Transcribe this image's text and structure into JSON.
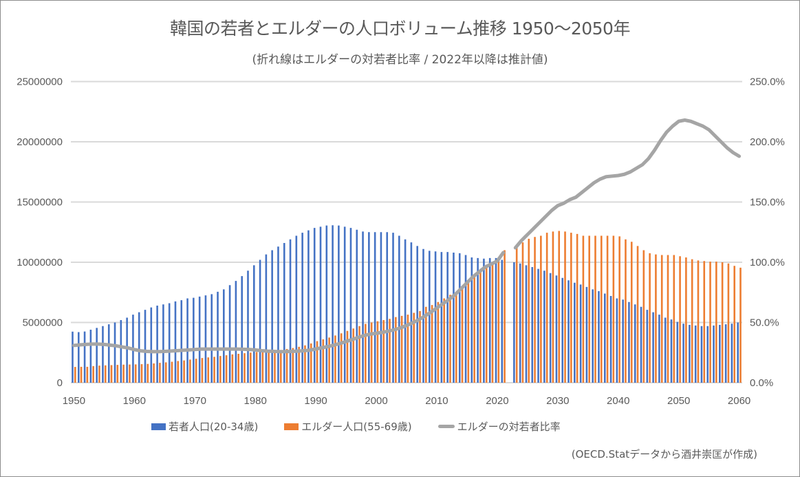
{
  "header": {
    "title": "韓国の若者とエルダーの人口ボリューム推移 1950〜2050年",
    "subtitle": "(折れ線はエルダーの対若者比率 / 2022年以降は推計値)"
  },
  "legend": {
    "young": "若者人口(20-34歳)",
    "elder": "エルダー人口(55-69歳)",
    "ratio": "エルダーの対若者比率"
  },
  "credit": "(OECD.Statデータから酒井崇匡が作成)",
  "colors": {
    "young": "#4472c4",
    "elder": "#ed7d31",
    "ratio": "#a5a5a5",
    "grid": "#d9d9d9",
    "text": "#595959"
  },
  "chart_data": {
    "type": "bar",
    "title": "韓国の若者とエルダーの人口ボリューム推移 1950〜2050年",
    "subtitle": "(折れ線はエルダーの対若者比率 / 2022年以降は推計値)",
    "x_start": 1950,
    "x_end": 2060,
    "x_ticks": [
      "1950",
      "1960",
      "1970",
      "1980",
      "1990",
      "2000",
      "2010",
      "2020",
      "2030",
      "2040",
      "2050",
      "2060"
    ],
    "y_left": {
      "min": 0,
      "max": 25000000,
      "ticks": [
        "0",
        "5000000",
        "10000000",
        "15000000",
        "20000000",
        "25000000"
      ]
    },
    "y_right": {
      "min": 0,
      "max": 2.5,
      "ticks": [
        "0.0%",
        "50.0%",
        "100.0%",
        "150.0%",
        "200.0%",
        "250.0%"
      ]
    },
    "grid": true,
    "legend_position": "bottom",
    "series": [
      {
        "name": "若者人口(20-34歳)",
        "type": "bar",
        "axis": "left",
        "values": [
          4240000,
          4200000,
          4250000,
          4400000,
          4550000,
          4700000,
          4850000,
          5000000,
          5200000,
          5400000,
          5650000,
          5850000,
          6050000,
          6250000,
          6400000,
          6500000,
          6600000,
          6750000,
          6850000,
          7000000,
          7050000,
          7150000,
          7250000,
          7350000,
          7550000,
          7750000,
          8100000,
          8450000,
          8850000,
          9300000,
          9750000,
          10200000,
          10650000,
          11000000,
          11300000,
          11600000,
          11900000,
          12200000,
          12450000,
          12650000,
          12850000,
          12950000,
          13050000,
          13070000,
          13050000,
          12950000,
          12850000,
          12700000,
          12550000,
          12500000,
          12500000,
          12500000,
          12500000,
          12450000,
          12200000,
          11900000,
          11650000,
          11350000,
          11100000,
          10950000,
          10900000,
          10850000,
          10850000,
          10800000,
          10750000,
          10600000,
          10400000,
          10350000,
          10300000,
          10350000,
          10350000,
          10200000,
          null,
          10000000,
          9900000,
          9750000,
          9600000,
          9450000,
          9300000,
          9100000,
          8900000,
          8700000,
          8500000,
          8300000,
          8150000,
          7950000,
          7750000,
          7600000,
          7400000,
          7200000,
          7000000,
          6900000,
          6700000,
          6500000,
          6300000,
          6050000,
          5850000,
          5650000,
          5400000,
          5250000,
          5050000,
          4900000,
          4800000,
          4750000,
          4700000,
          4700000,
          4750000,
          4800000,
          4850000,
          4900000,
          5000000
        ]
      },
      {
        "name": "エルダー人口(55-69歳)",
        "type": "bar",
        "axis": "left",
        "values": [
          1310000,
          1320000,
          1320000,
          1380000,
          1420000,
          1440000,
          1460000,
          1480000,
          1500000,
          1510000,
          1520000,
          1540000,
          1560000,
          1600000,
          1650000,
          1690000,
          1740000,
          1800000,
          1850000,
          1920000,
          1990000,
          2050000,
          2100000,
          2150000,
          2220000,
          2280000,
          2350000,
          2400000,
          2450000,
          2500000,
          2550000,
          2580000,
          2620000,
          2660000,
          2720000,
          2800000,
          2880000,
          2980000,
          3100000,
          3260000,
          3450000,
          3600000,
          3750000,
          3920000,
          4100000,
          4300000,
          4500000,
          4700000,
          4880000,
          5000000,
          5100000,
          5200000,
          5300000,
          5450000,
          5550000,
          5650000,
          5800000,
          5950000,
          6300000,
          6450000,
          6700000,
          7000000,
          7300000,
          7550000,
          7800000,
          8300000,
          8800000,
          9300000,
          9800000,
          10000000,
          10350000,
          11000000,
          null,
          11200000,
          11650000,
          11950000,
          12100000,
          12200000,
          12450000,
          12550000,
          12600000,
          12550000,
          12450000,
          12350000,
          12200000,
          12200000,
          12200000,
          12200000,
          12200000,
          12200000,
          12150000,
          11900000,
          11700000,
          11350000,
          11000000,
          10750000,
          10650000,
          10600000,
          10600000,
          10600000,
          10500000,
          10400000,
          10250000,
          10150000,
          10100000,
          10050000,
          10050000,
          10000000,
          9900000,
          9700000,
          9550000
        ]
      },
      {
        "name": "エルダーの対若者比率",
        "type": "line",
        "axis": "right",
        "values": [
          0.309,
          0.314,
          0.318,
          0.321,
          0.321,
          0.318,
          0.312,
          0.306,
          0.297,
          0.288,
          0.275,
          0.265,
          0.26,
          0.258,
          0.258,
          0.26,
          0.263,
          0.266,
          0.269,
          0.272,
          0.276,
          0.279,
          0.279,
          0.279,
          0.279,
          0.279,
          0.279,
          0.279,
          0.278,
          0.276,
          0.272,
          0.266,
          0.262,
          0.26,
          0.258,
          0.258,
          0.26,
          0.262,
          0.265,
          0.27,
          0.28,
          0.29,
          0.3,
          0.312,
          0.326,
          0.342,
          0.358,
          0.376,
          0.392,
          0.404,
          0.41,
          0.418,
          0.428,
          0.44,
          0.455,
          0.475,
          0.497,
          0.522,
          0.552,
          0.585,
          0.62,
          0.655,
          0.69,
          0.73,
          0.78,
          0.83,
          0.88,
          0.92,
          0.96,
          0.985,
          1.01,
          1.08,
          null,
          1.12,
          1.18,
          1.23,
          1.28,
          1.33,
          1.38,
          1.43,
          1.47,
          1.49,
          1.52,
          1.54,
          1.58,
          1.62,
          1.66,
          1.69,
          1.71,
          1.715,
          1.72,
          1.73,
          1.75,
          1.78,
          1.81,
          1.86,
          1.93,
          2.01,
          2.08,
          2.13,
          2.17,
          2.18,
          2.17,
          2.15,
          2.13,
          2.1,
          2.05,
          2.0,
          1.95,
          1.91,
          1.88
        ]
      }
    ]
  }
}
